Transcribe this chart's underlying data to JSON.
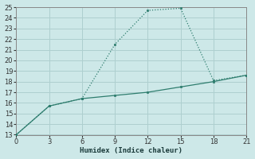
{
  "xlabel": "Humidex (Indice chaleur)",
  "background_color": "#cde8e8",
  "grid_color": "#aecfcf",
  "line_color": "#2e7d6e",
  "xlim": [
    0,
    21
  ],
  "ylim": [
    13,
    25
  ],
  "xticks": [
    0,
    3,
    6,
    9,
    12,
    15,
    18,
    21
  ],
  "yticks": [
    13,
    14,
    15,
    16,
    17,
    18,
    19,
    20,
    21,
    22,
    23,
    24,
    25
  ],
  "series1_x": [
    0,
    3,
    6,
    9,
    12,
    15,
    18,
    21
  ],
  "series1_y": [
    13.0,
    15.7,
    16.4,
    16.7,
    17.0,
    17.5,
    18.0,
    18.6
  ],
  "series2_x": [
    0,
    3,
    6,
    9,
    12,
    15,
    18,
    21
  ],
  "series2_y": [
    13.0,
    15.7,
    16.4,
    21.5,
    24.7,
    24.9,
    18.1,
    18.6
  ]
}
